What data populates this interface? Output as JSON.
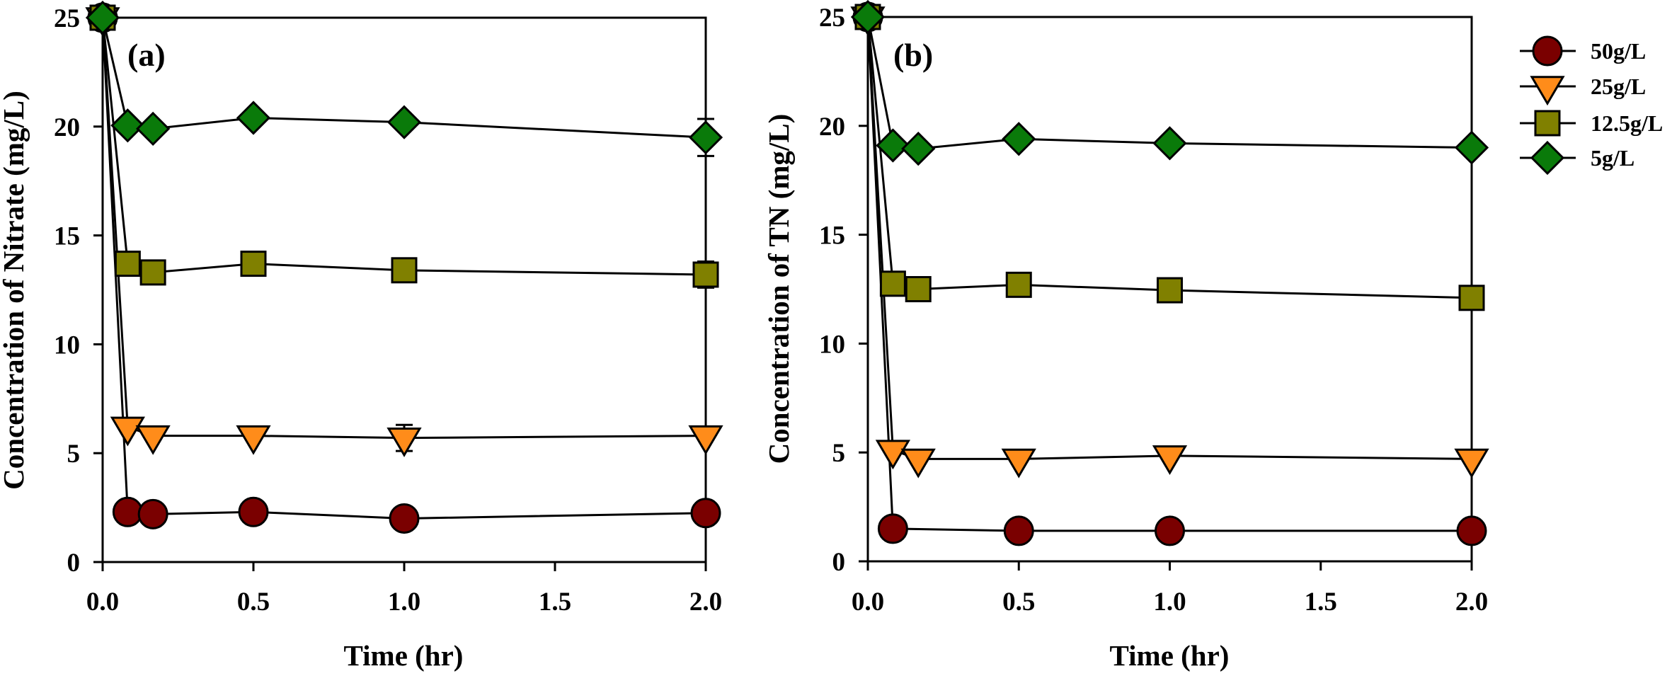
{
  "chart_data": [
    {
      "type": "line",
      "panel_label": "(a)",
      "title": "",
      "xlabel": "Time (hr)",
      "ylabel": "Concentration of Nitrate (mg/L)",
      "xlim": [
        0,
        2.0
      ],
      "ylim": [
        0,
        25
      ],
      "xticks": [
        0.0,
        0.5,
        1.0,
        1.5,
        2.0
      ],
      "xtick_labels": [
        "0.0",
        "0.5",
        "1.0",
        "1.5",
        "2.0"
      ],
      "yticks": [
        0,
        5,
        10,
        15,
        20,
        25
      ],
      "ytick_labels": [
        "0",
        "5",
        "10",
        "15",
        "20",
        "25"
      ],
      "grid": false,
      "legend": false,
      "series": [
        {
          "name": "50g/L",
          "marker": "circle",
          "color": "#7a0000",
          "x": [
            0,
            0.083,
            0.167,
            0.5,
            1.0,
            2.0
          ],
          "y": [
            25,
            2.3,
            2.2,
            2.3,
            2.0,
            2.25
          ],
          "err": [
            0,
            0,
            0,
            0,
            0,
            0
          ]
        },
        {
          "name": "25g/L",
          "marker": "triangle-down",
          "color": "#ff8c1a",
          "x": [
            0,
            0.083,
            0.167,
            0.5,
            1.0,
            2.0
          ],
          "y": [
            25,
            6.2,
            5.8,
            5.8,
            5.7,
            5.8
          ],
          "err": [
            0,
            0,
            0,
            0,
            0.6,
            0
          ]
        },
        {
          "name": "12.5g/L",
          "marker": "square",
          "color": "#808000",
          "x": [
            0,
            0.083,
            0.167,
            0.5,
            1.0,
            2.0
          ],
          "y": [
            25,
            13.7,
            13.3,
            13.7,
            13.4,
            13.2
          ],
          "err": [
            0,
            0,
            0,
            0,
            0,
            0.6
          ]
        },
        {
          "name": "5g/L",
          "marker": "diamond",
          "color": "#0a7a0a",
          "x": [
            0,
            0.083,
            0.167,
            0.5,
            1.0,
            2.0
          ],
          "y": [
            25,
            20.05,
            19.9,
            20.4,
            20.2,
            19.5
          ],
          "err": [
            0,
            0,
            0,
            0,
            0,
            0.85
          ]
        }
      ]
    },
    {
      "type": "line",
      "panel_label": "(b)",
      "title": "",
      "xlabel": "Time (hr)",
      "ylabel": "Concentration of TN (mg/L)",
      "xlim": [
        0,
        2.0
      ],
      "ylim": [
        0,
        25
      ],
      "xticks": [
        0.0,
        0.5,
        1.0,
        1.5,
        2.0
      ],
      "xtick_labels": [
        "0.0",
        "0.5",
        "1.0",
        "1.5",
        "2.0"
      ],
      "yticks": [
        0,
        5,
        10,
        15,
        20,
        25
      ],
      "ytick_labels": [
        "0",
        "5",
        "10",
        "15",
        "20",
        "25"
      ],
      "grid": false,
      "legend": true,
      "legend_position": "outside-top-right",
      "series": [
        {
          "name": "50g/L",
          "marker": "circle",
          "color": "#7a0000",
          "x": [
            0,
            0.083,
            0.5,
            1.0,
            2.0
          ],
          "y": [
            25,
            1.5,
            1.4,
            1.4,
            1.4
          ],
          "err": [
            0,
            0,
            0,
            0,
            0
          ]
        },
        {
          "name": "25g/L",
          "marker": "triangle-down",
          "color": "#ff8c1a",
          "x": [
            0,
            0.083,
            0.167,
            0.5,
            1.0,
            2.0
          ],
          "y": [
            25,
            5.1,
            4.7,
            4.7,
            4.85,
            4.7
          ],
          "err": [
            0,
            0,
            0,
            0,
            0,
            0
          ]
        },
        {
          "name": "12.5g/L",
          "marker": "square",
          "color": "#808000",
          "x": [
            0,
            0.083,
            0.167,
            0.5,
            1.0,
            2.0
          ],
          "y": [
            25,
            12.75,
            12.5,
            12.7,
            12.45,
            12.1
          ],
          "err": [
            0,
            0,
            0,
            0,
            0,
            0
          ]
        },
        {
          "name": "5g/L",
          "marker": "diamond",
          "color": "#0a7a0a",
          "x": [
            0,
            0.083,
            0.167,
            0.5,
            1.0,
            2.0
          ],
          "y": [
            25,
            19.1,
            18.95,
            19.4,
            19.2,
            19.0
          ],
          "err": [
            0,
            0,
            0,
            0,
            0,
            0
          ]
        }
      ]
    }
  ],
  "legend": {
    "entries": [
      {
        "label": "50g/L",
        "marker": "circle",
        "color": "#7a0000"
      },
      {
        "label": "25g/L",
        "marker": "triangle-down",
        "color": "#ff8c1a"
      },
      {
        "label": "12.5g/L",
        "marker": "square",
        "color": "#808000"
      },
      {
        "label": "5g/L",
        "marker": "diamond",
        "color": "#0a7a0a"
      }
    ]
  }
}
